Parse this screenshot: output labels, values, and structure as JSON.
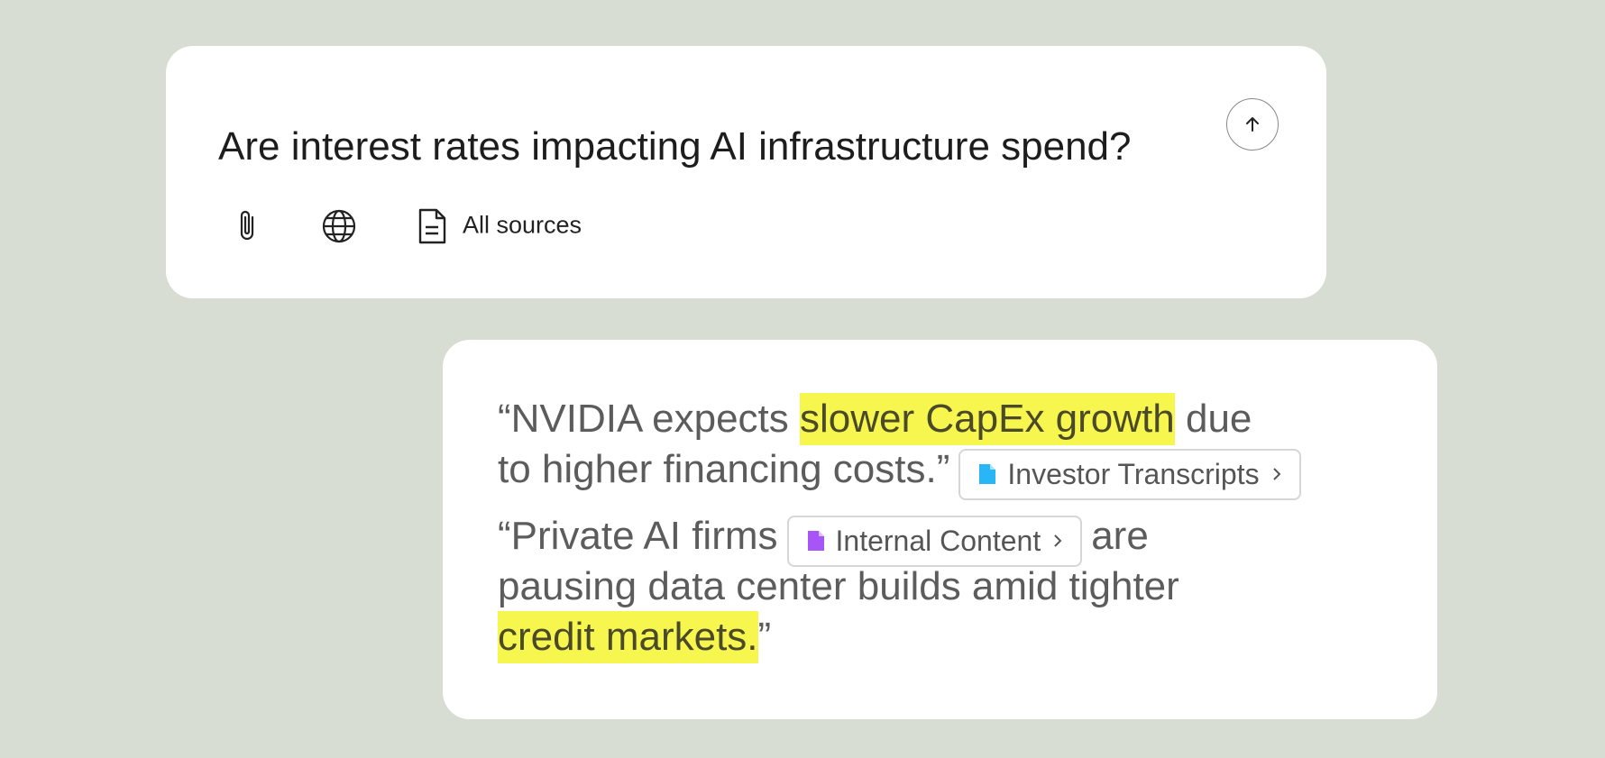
{
  "query": {
    "text": "Are interest rates impacting AI infrastructure spend?",
    "sources_label": "All sources"
  },
  "answer": {
    "quotes": [
      {
        "lines": [
          [
            {
              "text": "“NVIDIA expects "
            },
            {
              "highlight": "slower CapEx growth"
            },
            {
              "text": " due"
            }
          ],
          [
            {
              "text": "to higher financing costs.”"
            },
            {
              "source": "Investor Transcripts",
              "color": "#29b6f6"
            }
          ]
        ]
      },
      {
        "lines": [
          [
            {
              "text": "“Private AI firms"
            },
            {
              "source": "Internal Content",
              "color": "#a855f7"
            },
            {
              "text": "are"
            }
          ],
          [
            {
              "text": "pausing data center builds amid tighter"
            }
          ],
          [
            {
              "highlight": "credit markets."
            },
            {
              "text": "”"
            }
          ]
        ]
      }
    ]
  }
}
